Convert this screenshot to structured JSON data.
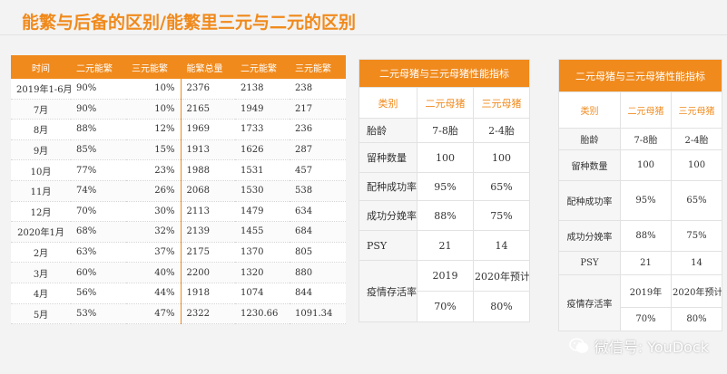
{
  "title": "能繁与后备的区别/能繁里三元与二元的区别",
  "left_table": {
    "headers": [
      "时间",
      "二元能繁",
      "三元能繁",
      "能繁总量",
      "二元能繁",
      "三元能繁"
    ],
    "rows": [
      [
        "2019年1-6月",
        "90%",
        "10%",
        "2376",
        "2138",
        "238"
      ],
      [
        "7月",
        "90%",
        "10%",
        "2165",
        "1949",
        "217"
      ],
      [
        "8月",
        "88%",
        "12%",
        "1969",
        "1733",
        "236"
      ],
      [
        "9月",
        "85%",
        "15%",
        "1913",
        "1626",
        "287"
      ],
      [
        "10月",
        "77%",
        "23%",
        "1988",
        "1531",
        "457"
      ],
      [
        "11月",
        "74%",
        "26%",
        "2068",
        "1530",
        "538"
      ],
      [
        "12月",
        "70%",
        "30%",
        "2113",
        "1479",
        "634"
      ],
      [
        "2020年1月",
        "68%",
        "32%",
        "2139",
        "1455",
        "684"
      ],
      [
        "2月",
        "63%",
        "37%",
        "2175",
        "1370",
        "805"
      ],
      [
        "3月",
        "60%",
        "40%",
        "2200",
        "1320",
        "880"
      ],
      [
        "4月",
        "56%",
        "44%",
        "1918",
        "1074",
        "844"
      ],
      [
        "5月",
        "53%",
        "47%",
        "2322",
        "1230.66",
        "1091.34"
      ]
    ]
  },
  "mid_table": {
    "caption": "二元母猪与三元母猪性能指标",
    "headers": [
      "类别",
      "二元母猪",
      "三元母猪"
    ],
    "rows": [
      [
        "胎龄",
        "7-8胎",
        "2-4胎"
      ],
      [
        "留种数量",
        "100",
        "100"
      ],
      [
        "配种成功率",
        "95%",
        "65%"
      ],
      [
        "成功分娩率",
        "88%",
        "75%"
      ],
      [
        "PSY",
        "21",
        "14"
      ]
    ],
    "last": {
      "key": "疫情存活率",
      "a_top": "2019",
      "b_top": "2020年预计",
      "a_bot": "70%",
      "b_bot": "80%"
    }
  },
  "right_table": {
    "caption": "二元母猪与三元母猪性能指标",
    "headers": [
      "类别",
      "二元母猪",
      "三元母猪"
    ],
    "rows": [
      [
        "胎龄",
        "7-8胎",
        "2-4胎"
      ],
      [
        "留种数量",
        "100",
        "100"
      ],
      [
        "配种成功率",
        "95%",
        "65%"
      ],
      [
        "成功分娩率",
        "88%",
        "75%"
      ],
      [
        "PSY",
        "21",
        "14"
      ]
    ],
    "last": {
      "key": "疫情存活率",
      "a_top": "2019年",
      "b_top": "2020年预计",
      "a_bot": "70%",
      "b_bot": "80%"
    }
  },
  "watermark": "微信号: YouDock",
  "colors": {
    "accent": "#f08a1c"
  }
}
